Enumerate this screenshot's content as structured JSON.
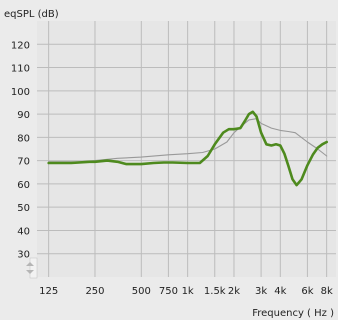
{
  "chart_data": {
    "type": "line",
    "ylabel": "eqSPL (dB)",
    "xlabel": "Frequency ( Hz )",
    "x_scale": "log",
    "ylim": [
      20,
      130
    ],
    "xlim": [
      105,
      9200
    ],
    "grid": true,
    "legend": "none",
    "y_ticks": [
      30,
      40,
      50,
      60,
      70,
      80,
      90,
      100,
      110,
      120
    ],
    "x_ticks": [
      {
        "value": 125,
        "label": "125"
      },
      {
        "value": 250,
        "label": "250"
      },
      {
        "value": 500,
        "label": "500"
      },
      {
        "value": 750,
        "label": "750"
      },
      {
        "value": 1000,
        "label": "1k"
      },
      {
        "value": 1500,
        "label": "1.5k"
      },
      {
        "value": 2000,
        "label": "2k"
      },
      {
        "value": 3000,
        "label": "3k"
      },
      {
        "value": 4000,
        "label": "4k"
      },
      {
        "value": 6000,
        "label": "6k"
      },
      {
        "value": 8000,
        "label": "8k"
      }
    ],
    "series": [
      {
        "color": "#999999",
        "x": [
          125,
          200,
          250,
          350,
          500,
          750,
          1000,
          1250,
          1500,
          1800,
          2000,
          2250,
          2500,
          2800,
          3000,
          3500,
          4000,
          4500,
          5000,
          6000,
          7000,
          8000
        ],
        "y": [
          69.5,
          69.5,
          70,
          71,
          71.5,
          72.5,
          73,
          73.5,
          75,
          78,
          82,
          85,
          87.5,
          88,
          86,
          84,
          83,
          82.5,
          82,
          78,
          75,
          72
        ]
      },
      {
        "color": "#4e8a1e",
        "x": [
          125,
          175,
          230,
          250,
          300,
          350,
          400,
          500,
          600,
          700,
          800,
          1000,
          1200,
          1350,
          1500,
          1700,
          1850,
          2000,
          2200,
          2350,
          2500,
          2650,
          2800,
          3000,
          3250,
          3500,
          3750,
          4000,
          4250,
          4500,
          4800,
          5100,
          5500,
          6000,
          6500,
          7000,
          7500,
          8000
        ],
        "y": [
          69,
          69,
          69.5,
          69.5,
          70,
          69.5,
          68.5,
          68.5,
          69,
          69.2,
          69.2,
          69,
          69,
          72,
          77,
          82,
          83.5,
          83.5,
          84,
          87,
          90,
          91,
          89,
          82,
          77,
          76.5,
          77,
          76.5,
          73,
          68,
          62,
          59.5,
          62,
          68,
          72.5,
          75.5,
          77,
          78
        ]
      }
    ]
  }
}
